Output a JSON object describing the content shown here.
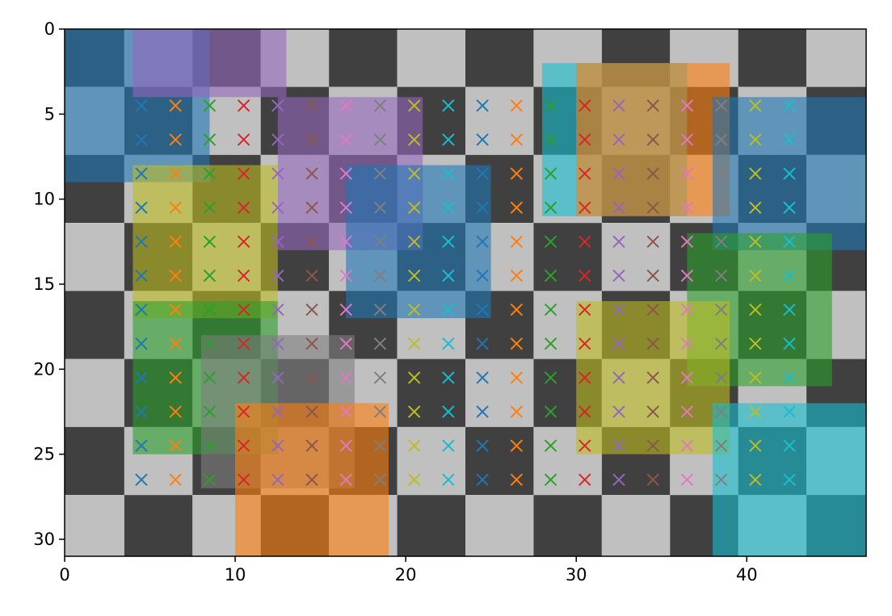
{
  "chart_data": {
    "type": "heatmap",
    "title": "",
    "xlabel": "",
    "ylabel": "",
    "xlim": [
      0,
      47
    ],
    "ylim": [
      31,
      0
    ],
    "x_ticks": [
      "0",
      "10",
      "20",
      "30",
      "40"
    ],
    "y_ticks": [
      "0",
      "5",
      "10",
      "15",
      "20",
      "25",
      "30"
    ],
    "checkerboard": {
      "light_color": "#c0c0c0",
      "dark_color": "#404040",
      "col_edges": [
        0,
        3.5,
        7.5,
        11.5,
        15.5,
        19.5,
        23.5,
        27.5,
        31.5,
        35.5,
        39.5,
        43.5,
        47
      ],
      "row_edges": [
        0,
        3.4,
        7.4,
        11.4,
        15.4,
        19.4,
        23.4,
        27.4,
        31
      ],
      "top_left": "dark"
    },
    "rectangles": [
      {
        "x0": 0,
        "y0": 0,
        "x1": 8.5,
        "y1": 9,
        "color": "#1f77b4"
      },
      {
        "x0": 4,
        "y0": 0,
        "x1": 13,
        "y1": 4,
        "color": "#9467bd"
      },
      {
        "x0": 12.5,
        "y0": 4,
        "x1": 21,
        "y1": 13,
        "color": "#9467bd"
      },
      {
        "x0": 16.5,
        "y0": 8,
        "x1": 25,
        "y1": 17,
        "color": "#1f77b4"
      },
      {
        "x0": 4,
        "y0": 8,
        "x1": 12.5,
        "y1": 17,
        "color": "#bcbd22"
      },
      {
        "x0": 4,
        "y0": 16,
        "x1": 12.5,
        "y1": 25,
        "color": "#2ca02c"
      },
      {
        "x0": 8,
        "y0": 18,
        "x1": 17,
        "y1": 27,
        "color": "#7f7f7f"
      },
      {
        "x0": 10,
        "y0": 22,
        "x1": 19,
        "y1": 31,
        "color": "#ff7f0e"
      },
      {
        "x0": 28,
        "y0": 2,
        "x1": 36.5,
        "y1": 11,
        "color": "#17becf"
      },
      {
        "x0": 30,
        "y0": 2,
        "x1": 39,
        "y1": 11,
        "color": "#ff7f0e"
      },
      {
        "x0": 38,
        "y0": 4,
        "x1": 47,
        "y1": 13,
        "color": "#1f77b4"
      },
      {
        "x0": 36.5,
        "y0": 12,
        "x1": 45,
        "y1": 21,
        "color": "#2ca02c"
      },
      {
        "x0": 30,
        "y0": 16,
        "x1": 39,
        "y1": 25,
        "color": "#bcbd22"
      },
      {
        "x0": 38,
        "y0": 22,
        "x1": 47,
        "y1": 31,
        "color": "#17becf"
      }
    ],
    "markers": {
      "symbol": "x",
      "x": [
        4.5,
        6.5,
        8.5,
        10.5,
        12.5,
        14.5,
        16.5,
        18.5,
        20.5,
        22.5,
        24.5,
        26.5,
        28.5,
        30.5,
        32.5,
        34.5,
        36.5,
        38.5,
        40.5,
        42.5
      ],
      "y": [
        4.5,
        6.5,
        8.5,
        10.5,
        12.5,
        14.5,
        16.5,
        18.5,
        20.5,
        22.5,
        24.5,
        26.5
      ],
      "color_cycle": [
        "#1f77b4",
        "#ff7f0e",
        "#2ca02c",
        "#d62728",
        "#9467bd",
        "#8c564b",
        "#e377c2",
        "#7f7f7f",
        "#bcbd22",
        "#17becf"
      ]
    }
  }
}
